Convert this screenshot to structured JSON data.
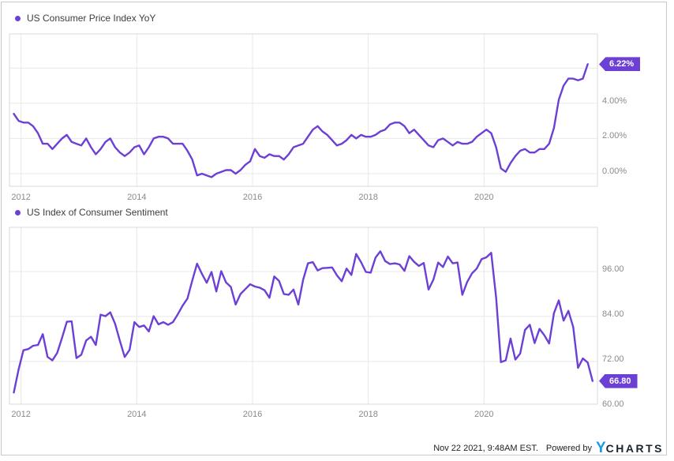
{
  "colors": {
    "accent_purple": "#6C3FD5",
    "badge_purple": "#6C3FD5",
    "logo_blue": "#189CE8",
    "logo_dark": "#1B2530",
    "gridline": "#e8e8e8",
    "plot_border": "#d8d8d8",
    "tick_text": "#8a8a8a"
  },
  "footer": {
    "timestamp": "Nov 22 2021, 9:48AM EST.",
    "powered_by": "Powered by",
    "logo_y": "Y",
    "logo_charts": "CHARTS"
  },
  "chart_data": [
    {
      "type": "line",
      "title": "US Consumer Price Index YoY",
      "legend_position": "top-left",
      "grid": true,
      "unit": "%",
      "xlim": [
        2011.8,
        2021.96
      ],
      "ylim": [
        -0.72,
        7.94
      ],
      "x_ticks": [
        2012,
        2014,
        2016,
        2018,
        2020
      ],
      "y_ticks": [
        {
          "value": 4,
          "label": "4.00%"
        },
        {
          "value": 2,
          "label": "2.00%"
        },
        {
          "value": 0,
          "label": "0.00%"
        }
      ],
      "y_gridlines": [
        6,
        4,
        2,
        0
      ],
      "badge": {
        "label": "6.22%",
        "value": 6.22
      },
      "series": [
        {
          "name": "US Consumer Price Index YoY",
          "frequency": "monthly",
          "start_year": 2011,
          "start_month": 11,
          "values": [
            3.4,
            3.0,
            2.9,
            2.9,
            2.7,
            2.3,
            1.7,
            1.7,
            1.4,
            1.7,
            2.0,
            2.2,
            1.8,
            1.7,
            1.6,
            2.0,
            1.5,
            1.1,
            1.4,
            1.8,
            2.0,
            1.5,
            1.2,
            1.0,
            1.2,
            1.5,
            1.6,
            1.1,
            1.5,
            2.0,
            2.1,
            2.1,
            2.0,
            1.7,
            1.7,
            1.7,
            1.3,
            0.8,
            -0.1,
            0.0,
            -0.1,
            -0.2,
            0.0,
            0.1,
            0.2,
            0.2,
            0.0,
            0.2,
            0.5,
            0.7,
            1.4,
            1.0,
            0.9,
            1.1,
            1.0,
            1.0,
            0.8,
            1.1,
            1.5,
            1.6,
            1.7,
            2.1,
            2.5,
            2.7,
            2.4,
            2.2,
            1.9,
            1.6,
            1.7,
            1.9,
            2.2,
            2.0,
            2.2,
            2.1,
            2.1,
            2.2,
            2.4,
            2.5,
            2.8,
            2.9,
            2.9,
            2.7,
            2.3,
            2.5,
            2.2,
            1.9,
            1.6,
            1.5,
            1.9,
            2.0,
            1.8,
            1.6,
            1.8,
            1.7,
            1.7,
            1.8,
            2.1,
            2.3,
            2.5,
            2.3,
            1.5,
            0.3,
            0.1,
            0.6,
            1.0,
            1.3,
            1.4,
            1.2,
            1.2,
            1.4,
            1.4,
            1.7,
            2.6,
            4.2,
            5.0,
            5.4,
            5.4,
            5.3,
            5.4,
            6.22
          ]
        }
      ]
    },
    {
      "type": "line",
      "title": "US Index of Consumer Sentiment",
      "legend_position": "top-left",
      "grid": true,
      "unit": "index",
      "xlim": [
        2011.8,
        2021.96
      ],
      "ylim": [
        60.6,
        107.8
      ],
      "x_ticks": [
        2012,
        2014,
        2016,
        2018,
        2020
      ],
      "y_ticks": [
        {
          "value": 96,
          "label": "96.00"
        },
        {
          "value": 84,
          "label": "84.00"
        },
        {
          "value": 72,
          "label": "72.00"
        },
        {
          "value": 60,
          "label": "60.00"
        }
      ],
      "y_gridlines": [
        96,
        84,
        72,
        60
      ],
      "badge": {
        "label": "66.80",
        "value": 66.8
      },
      "series": [
        {
          "name": "US Index of Consumer Sentiment",
          "frequency": "monthly",
          "start_year": 2011,
          "start_month": 11,
          "values": [
            63.7,
            69.9,
            75.0,
            75.3,
            76.2,
            76.4,
            79.3,
            73.2,
            72.3,
            74.3,
            78.3,
            82.6,
            82.7,
            72.9,
            73.8,
            77.6,
            78.6,
            76.4,
            84.5,
            84.1,
            85.1,
            82.1,
            77.5,
            73.2,
            75.1,
            82.5,
            81.2,
            81.6,
            80.0,
            84.1,
            81.9,
            82.5,
            81.8,
            82.5,
            84.6,
            86.9,
            88.8,
            93.6,
            98.1,
            95.4,
            93.0,
            95.9,
            90.7,
            96.1,
            93.1,
            91.9,
            87.2,
            90.0,
            91.3,
            92.6,
            92.0,
            91.7,
            91.0,
            89.0,
            94.7,
            93.5,
            90.0,
            89.8,
            91.2,
            87.2,
            93.8,
            98.2,
            98.5,
            96.3,
            96.9,
            97.0,
            97.1,
            95.0,
            93.4,
            96.8,
            95.1,
            100.7,
            98.5,
            95.9,
            95.7,
            99.7,
            101.4,
            98.8,
            98.0,
            98.2,
            97.9,
            96.2,
            100.1,
            98.6,
            97.5,
            98.3,
            91.2,
            93.8,
            98.4,
            97.2,
            100.0,
            98.2,
            98.4,
            89.8,
            93.2,
            95.5,
            96.8,
            99.3,
            99.8,
            101.0,
            89.1,
            71.8,
            72.3,
            78.1,
            72.5,
            74.1,
            80.4,
            81.8,
            76.9,
            80.7,
            79.0,
            76.8,
            84.9,
            88.3,
            82.9,
            85.5,
            81.2,
            70.3,
            72.8,
            71.7,
            66.8
          ]
        }
      ]
    }
  ]
}
